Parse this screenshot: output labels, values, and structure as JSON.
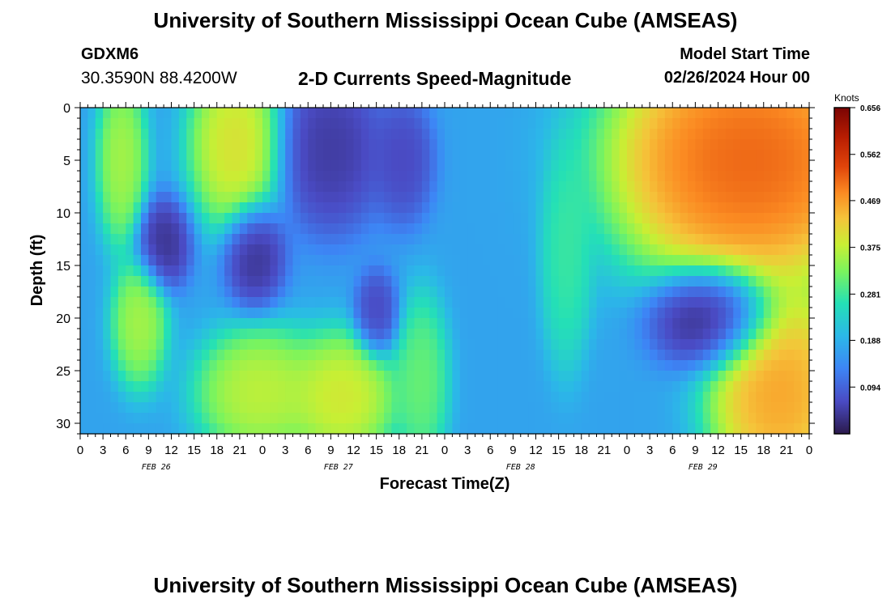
{
  "header": {
    "title": "University of Southern Mississippi Ocean Cube (AMSEAS)",
    "station_id": "GDXM6",
    "station_coords": "30.3590N  88.4200W",
    "model_start_label": "Model Start Time",
    "model_start_value": "02/26/2024 Hour 00"
  },
  "footer": {
    "title": "University of Southern Mississippi Ocean Cube (AMSEAS)"
  },
  "chart_data": {
    "type": "heatmap",
    "title": "2-D Currents Speed-Magnitude",
    "xlabel": "Forecast Time(Z)",
    "ylabel": "Depth (ft)",
    "colorbar_label": "Knots",
    "colorbar_ticks": [
      "0.656",
      "0.562",
      "0.469",
      "0.375",
      "0.281",
      "0.188",
      "0.094"
    ],
    "colorbar_tick_values": [
      0.656,
      0.562,
      0.469,
      0.375,
      0.281,
      0.188,
      0.094
    ],
    "color_range": [
      0.0,
      0.656
    ],
    "x_range_hours": [
      0,
      96
    ],
    "x_tick_labels": [
      "0",
      "3",
      "6",
      "9",
      "12",
      "15",
      "18",
      "21",
      "0",
      "3",
      "6",
      "9",
      "12",
      "15",
      "18",
      "21",
      "0",
      "3",
      "6",
      "9",
      "12",
      "15",
      "18",
      "21",
      "0",
      "3",
      "6",
      "9",
      "12",
      "15",
      "18",
      "21",
      "0"
    ],
    "date_labels": [
      {
        "text": "FEB 26",
        "hour": 10
      },
      {
        "text": "FEB 27",
        "hour": 34
      },
      {
        "text": "FEB 28",
        "hour": 58
      },
      {
        "text": "FEB 29",
        "hour": 82
      }
    ],
    "y_range": [
      0,
      31
    ],
    "y_ticks": [
      0,
      5,
      10,
      15,
      20,
      25,
      30
    ],
    "y_tick_labels": [
      "0",
      "5",
      "10",
      "15",
      "20",
      "25",
      "30"
    ],
    "grid": false,
    "legend_placement": "right colorbar",
    "speed_features_knots": [
      {
        "hour_center": 5.5,
        "depth_center": 5,
        "hour_width": 1.6,
        "depth_width": 4,
        "speed": 0.38
      },
      {
        "hour_center": 7.8,
        "depth_center": 20.5,
        "hour_width": 1.8,
        "depth_width": 3,
        "speed": 0.38
      },
      {
        "hour_center": 20.5,
        "depth_center": 3.5,
        "hour_width": 3,
        "depth_width": 4,
        "speed": 0.43
      },
      {
        "hour_center": 23.5,
        "depth_center": 27,
        "hour_width": 4,
        "depth_width": 3,
        "speed": 0.4
      },
      {
        "hour_center": 34.5,
        "depth_center": 27.5,
        "hour_width": 3.5,
        "depth_width": 3,
        "speed": 0.42
      },
      {
        "hour_center": 45,
        "depth_center": 26,
        "hour_width": 1.7,
        "depth_width": 4,
        "speed": 0.33
      },
      {
        "hour_center": 64,
        "depth_center": 14.5,
        "hour_width": 1.6,
        "depth_width": 5,
        "speed": 0.29
      },
      {
        "hour_center": 88,
        "depth_center": 5,
        "hour_width": 9,
        "depth_width": 6,
        "speed": 0.56
      },
      {
        "hour_center": 92,
        "depth_center": 27,
        "hour_width": 4.5,
        "depth_width": 5,
        "speed": 0.5
      },
      {
        "hour_center": 11,
        "depth_center": 13,
        "hour_width": 1.8,
        "depth_width": 2.2,
        "speed": 0.02
      },
      {
        "hour_center": 23,
        "depth_center": 14,
        "hour_width": 2,
        "depth_width": 2.5,
        "speed": 0.02
      },
      {
        "hour_center": 33,
        "depth_center": 4,
        "hour_width": 3.5,
        "depth_width": 4,
        "speed": 0.03
      },
      {
        "hour_center": 42.5,
        "depth_center": 5,
        "hour_width": 2,
        "depth_width": 3,
        "speed": 0.05
      },
      {
        "hour_center": 39,
        "depth_center": 19.5,
        "hour_width": 1.4,
        "depth_width": 2,
        "speed": 0.05
      },
      {
        "hour_center": 83,
        "depth_center": 20,
        "hour_width": 4,
        "depth_width": 2.4,
        "speed": 0.0
      }
    ]
  }
}
